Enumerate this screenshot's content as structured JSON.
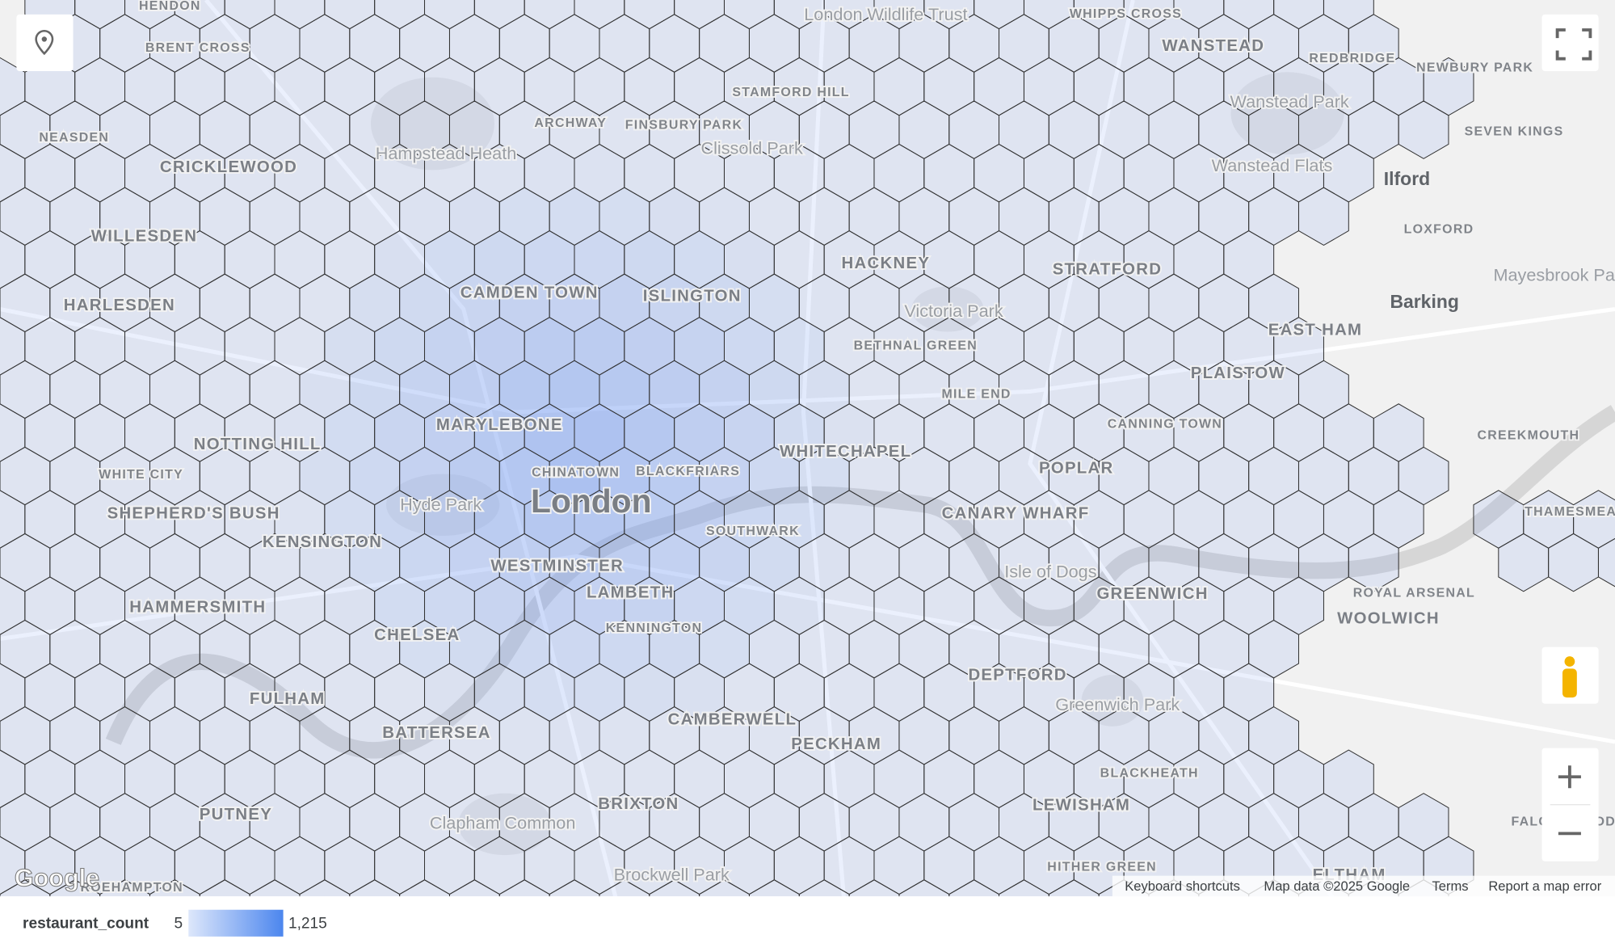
{
  "map": {
    "labels": [
      "HENDON",
      "BRENT CROSS",
      "NEASDEN",
      "CRICKLEWOOD",
      "WILLESDEN",
      "HARLESDEN",
      "Hampstead Heath",
      "ARCHWAY",
      "FINSBURY PARK",
      "STAMFORD HILL",
      "Clissold Park",
      "CAMDEN TOWN",
      "ISLINGTON",
      "HACKNEY",
      "Victoria Park",
      "STRATFORD",
      "WANSTEAD",
      "REDBRIDGE",
      "Wanstead Park",
      "NEWBURY PARK",
      "SEVEN KINGS",
      "Wanstead Flats",
      "Ilford",
      "LOXFORD",
      "Mayesbrook Park",
      "Barking",
      "EAST HAM",
      "PLAISTOW",
      "BETHNAL GREEN",
      "MILE END",
      "MARYLEBONE",
      "NOTTING HILL",
      "WHITE CITY",
      "SHEPHERD'S BUSH",
      "CHINATOWN",
      "BLACKFRIARS",
      "London",
      "WHITECHAPEL",
      "CANNING TOWN",
      "POPLAR",
      "CANARY WHARF",
      "Hyde Park",
      "KENSINGTON",
      "SOUTHWARK",
      "WESTMINSTER",
      "LAMBETH",
      "Isle of Dogs",
      "GREENWICH",
      "ROYAL ARSENAL",
      "WOOLWICH",
      "CREEKMOUTH",
      "THAMESMEAD",
      "HAMMERSMITH",
      "CHELSEA",
      "KENNINGTON",
      "FULHAM",
      "DEPTFORD",
      "Greenwich Park",
      "CAMBERWELL",
      "PECKHAM",
      "BATTERSEA",
      "BRIXTON",
      "LEWISHAM",
      "BLACKHEATH",
      "PUTNEY",
      "Clapham Common",
      "FALCONWOOD",
      "Brockwell Park",
      "HITHER GREEN",
      "ROEHAMPTON",
      "ELTHAM",
      "WHIPPS CROSS",
      "London Wildlife Trust"
    ],
    "logo": "Google",
    "footer": [
      "Keyboard shortcuts",
      "Map data ©2025 Google",
      "Terms",
      "Report a map error"
    ]
  },
  "legend": {
    "title": "restaurant_count",
    "min": 5,
    "max": {
      "value": 1215,
      "label": "1,215"
    }
  }
}
